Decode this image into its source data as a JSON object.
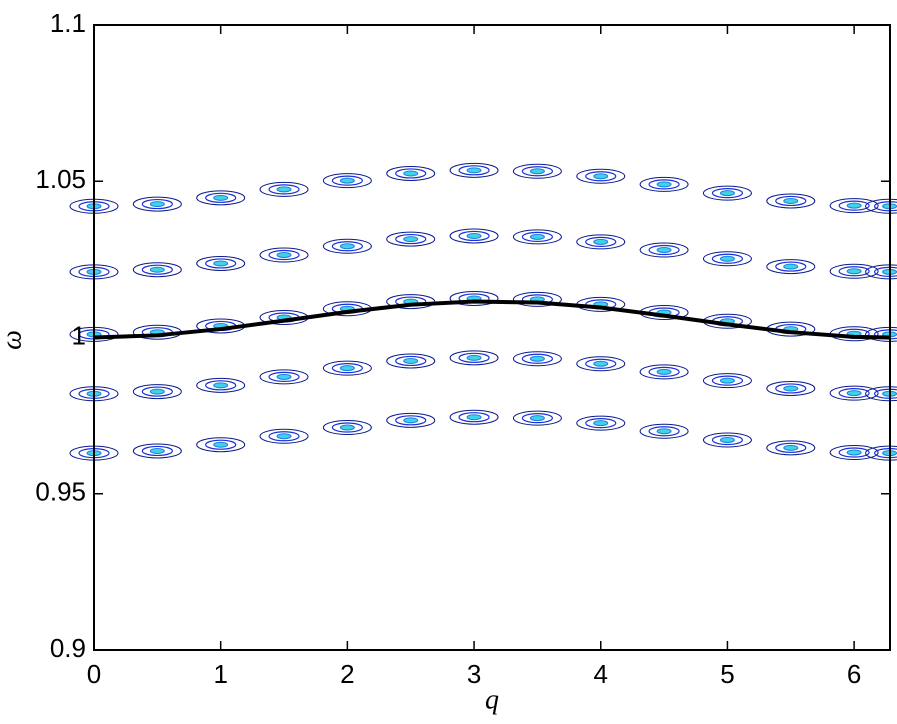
{
  "chart_data": {
    "type": "contour",
    "x_label": "q",
    "y_label": "ω",
    "xlim": [
      0,
      6.2832
    ],
    "ylim": [
      0.9,
      1.1
    ],
    "xticks": [
      0,
      1,
      2,
      3,
      4,
      5,
      6
    ],
    "yticks": [
      0.9,
      0.95,
      1,
      1.05,
      1.1
    ],
    "x": [
      0,
      0.5,
      1,
      1.5,
      2,
      2.5,
      3,
      3.5,
      4,
      4.5,
      5,
      5.5,
      6,
      6.28
    ],
    "series": [
      {
        "kind": "contour",
        "color": "#1a2fd6",
        "values": [
          0.963,
          0.9637,
          0.9657,
          0.9684,
          0.9712,
          0.9735,
          0.9745,
          0.9742,
          0.9726,
          0.97,
          0.9672,
          0.9647,
          0.9632,
          0.963
        ]
      },
      {
        "kind": "contour",
        "color": "#1a2fd6",
        "values": [
          0.982,
          0.9827,
          0.9847,
          0.9874,
          0.9902,
          0.9925,
          0.9935,
          0.9932,
          0.9916,
          0.989,
          0.9862,
          0.9837,
          0.9822,
          0.982
        ]
      },
      {
        "kind": "contour",
        "color": "#1a2fd6",
        "values": [
          1.001,
          1.0017,
          1.0037,
          1.0064,
          1.0092,
          1.0115,
          1.0125,
          1.0122,
          1.0106,
          1.008,
          1.0052,
          1.0027,
          1.0012,
          1.001
        ]
      },
      {
        "kind": "contour",
        "color": "#1a2fd6",
        "values": [
          1.021,
          1.0217,
          1.0237,
          1.0264,
          1.0292,
          1.0315,
          1.0325,
          1.0322,
          1.0306,
          1.028,
          1.0252,
          1.0227,
          1.0212,
          1.021
        ]
      },
      {
        "kind": "contour",
        "color": "#1a2fd6",
        "values": [
          1.042,
          1.0427,
          1.0447,
          1.0474,
          1.0502,
          1.0525,
          1.0535,
          1.0532,
          1.0516,
          1.049,
          1.0462,
          1.0437,
          1.0422,
          1.042
        ]
      },
      {
        "kind": "line",
        "color": "#000000",
        "values": [
          1.0,
          1.0007,
          1.0027,
          1.0054,
          1.0082,
          1.0105,
          1.0115,
          1.0112,
          1.0096,
          1.007,
          1.0042,
          1.0017,
          1.0002,
          1.0
        ]
      }
    ]
  }
}
